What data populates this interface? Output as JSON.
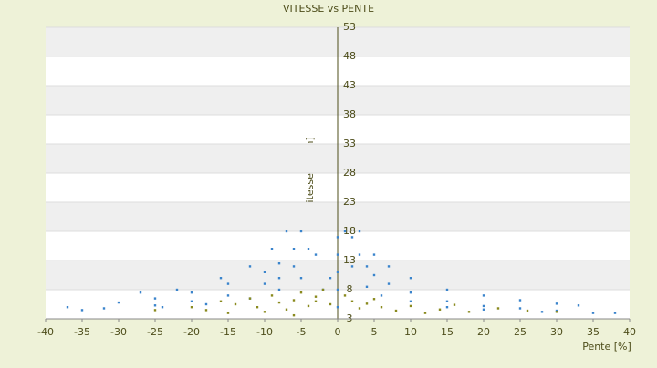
{
  "chart_data": {
    "type": "scatter",
    "title": "VITESSE vs PENTE",
    "x_label": "Pente [%]",
    "y_label": "Vitesse [km/h]",
    "xlim": [
      -40,
      40
    ],
    "ylim": [
      3,
      53
    ],
    "xticks": [
      -40,
      -35,
      -30,
      -25,
      -20,
      -15,
      -10,
      -5,
      0,
      5,
      10,
      15,
      20,
      25,
      30,
      35,
      40
    ],
    "yticks": [
      3,
      8,
      13,
      18,
      23,
      28,
      33,
      38,
      43,
      48,
      53
    ],
    "grid": true,
    "series": [
      {
        "color": "#3a84cc",
        "x": [
          2,
          3,
          4,
          5,
          7,
          10,
          15,
          20,
          25,
          30,
          3,
          5,
          7,
          10,
          15,
          20,
          25,
          30,
          33,
          1,
          2,
          4,
          6,
          10,
          15,
          20,
          28,
          35,
          -5,
          -6,
          -8,
          -10,
          -15,
          -20,
          -25,
          -30,
          -4,
          -6,
          -8,
          -10,
          -15,
          -20,
          -25,
          -32,
          -3,
          -5,
          -8,
          -12,
          -18,
          -24,
          -35,
          -7,
          -9,
          -12,
          -16,
          -22,
          -27,
          0,
          0,
          0,
          0,
          0,
          -2,
          -1,
          38,
          -37
        ],
        "values": [
          17,
          14,
          12,
          10.5,
          9,
          7.5,
          6,
          5.2,
          4.8,
          4.4,
          18,
          14,
          12,
          10,
          8,
          7,
          6.2,
          5.6,
          5.3,
          18,
          12,
          8.5,
          7,
          6,
          5,
          4.6,
          4.2,
          4,
          18,
          15,
          12.5,
          11,
          9,
          7.5,
          6.5,
          5.8,
          15,
          12,
          10,
          9,
          7,
          6,
          5.3,
          4.8,
          14,
          10,
          8,
          6.5,
          5.5,
          5,
          4.5,
          18,
          15,
          12,
          10,
          8,
          7.5,
          17,
          14,
          11,
          8,
          5,
          8,
          10,
          4,
          5
        ]
      },
      {
        "color": "#8a8a1e",
        "x": [
          -20,
          -18,
          -16,
          -15,
          -14,
          -12,
          -11,
          -10,
          -9,
          -8,
          -7,
          -6,
          -5,
          -4,
          -3,
          -2,
          -1,
          1,
          2,
          3,
          4,
          5,
          6,
          8,
          10,
          12,
          14,
          16,
          18,
          22,
          26,
          30,
          -25,
          -6,
          -3
        ],
        "values": [
          5,
          4.5,
          6,
          4,
          5.5,
          6.5,
          5,
          4.2,
          7,
          5.8,
          4.6,
          6.2,
          7.5,
          5.2,
          6.8,
          8,
          5.5,
          7,
          6,
          4.8,
          5.6,
          6.4,
          5,
          4.4,
          5.2,
          4,
          4.6,
          5.4,
          4.2,
          4.8,
          4.4,
          4.2,
          4.5,
          3.6,
          6
        ]
      }
    ]
  }
}
